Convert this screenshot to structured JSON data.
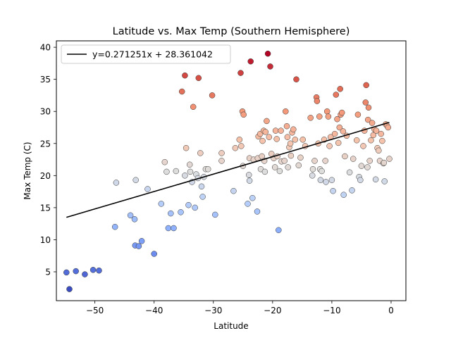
{
  "chart_data": {
    "type": "scatter",
    "title": "Latitude vs. Max Temp (Southern Hemisphere)",
    "xlabel": "Latitude",
    "ylabel": "Max Temp (C)",
    "xlim": [
      -56.5,
      2.5
    ],
    "ylim": [
      0.5,
      41
    ],
    "xticks": [
      -50,
      -40,
      -30,
      -20,
      -10,
      0
    ],
    "yticks": [
      5,
      10,
      15,
      20,
      25,
      30,
      35,
      40
    ],
    "xtick_labels": [
      "−50",
      "−40",
      "−30",
      "−20",
      "−10",
      "0"
    ],
    "yticks_labels": [
      "5",
      "10",
      "15",
      "20",
      "25",
      "30",
      "35",
      "40"
    ],
    "colormap": "coolwarm",
    "color_range": [
      2.3,
      39.0
    ],
    "grid": false,
    "legend_position": "top-left",
    "regression": {
      "label": "y=0.271251x + 28.361042",
      "slope": 0.271251,
      "intercept": 28.361042,
      "x_range": [
        -54.8,
        -0.3
      ],
      "color": "#000000"
    },
    "points": [
      [
        -54.8,
        4.9
      ],
      [
        -54.3,
        2.3
      ],
      [
        -53.2,
        5.1
      ],
      [
        -51.7,
        4.6
      ],
      [
        -50.3,
        5.3
      ],
      [
        -49.3,
        5.2
      ],
      [
        -46.6,
        12.0
      ],
      [
        -46.4,
        18.9
      ],
      [
        -44.0,
        13.8
      ],
      [
        -43.3,
        13.2
      ],
      [
        -43.2,
        9.1
      ],
      [
        -43.1,
        19.3
      ],
      [
        -42.6,
        9.0
      ],
      [
        -42.1,
        9.8
      ],
      [
        -41.1,
        17.9
      ],
      [
        -40.0,
        7.8
      ],
      [
        -38.8,
        15.6
      ],
      [
        -38.2,
        22.1
      ],
      [
        -37.9,
        20.6
      ],
      [
        -37.6,
        11.8
      ],
      [
        -37.2,
        14.1
      ],
      [
        -36.7,
        11.8
      ],
      [
        -36.3,
        20.7
      ],
      [
        -35.5,
        14.3
      ],
      [
        -35.3,
        33.1
      ],
      [
        -34.8,
        35.6
      ],
      [
        -34.8,
        20.0
      ],
      [
        -34.6,
        24.3
      ],
      [
        -34.2,
        15.4
      ],
      [
        -34.0,
        21.7
      ],
      [
        -33.9,
        20.6
      ],
      [
        -33.6,
        19.0
      ],
      [
        -33.4,
        30.7
      ],
      [
        -33.1,
        15.0
      ],
      [
        -32.9,
        20.2
      ],
      [
        -32.6,
        19.6
      ],
      [
        -32.5,
        35.2
      ],
      [
        -32.2,
        23.5
      ],
      [
        -32.0,
        18.3
      ],
      [
        -31.8,
        16.7
      ],
      [
        -31.6,
        19.8
      ],
      [
        -31.3,
        21.0
      ],
      [
        -30.9,
        21.0
      ],
      [
        -30.2,
        32.5
      ],
      [
        -29.7,
        13.9
      ],
      [
        -28.6,
        23.5
      ],
      [
        -28.6,
        22.3
      ],
      [
        -26.6,
        17.6
      ],
      [
        -26.3,
        24.3
      ],
      [
        -25.6,
        25.6
      ],
      [
        -25.4,
        36.0
      ],
      [
        -25.3,
        24.6
      ],
      [
        -25.1,
        30.0
      ],
      [
        -25.0,
        21.5
      ],
      [
        -24.9,
        29.5
      ],
      [
        -24.2,
        15.6
      ],
      [
        -24.0,
        20.1
      ],
      [
        -23.9,
        22.7
      ],
      [
        -23.9,
        19.2
      ],
      [
        -23.7,
        37.8
      ],
      [
        -23.4,
        16.5
      ],
      [
        -23.2,
        22.5
      ],
      [
        -22.6,
        14.4
      ],
      [
        -22.5,
        22.7
      ],
      [
        -22.4,
        26.1
      ],
      [
        -22.1,
        26.5
      ],
      [
        -22.0,
        21.0
      ],
      [
        -21.8,
        23.0
      ],
      [
        -21.7,
        25.4
      ],
      [
        -21.5,
        27.0
      ],
      [
        -21.4,
        22.3
      ],
      [
        -21.3,
        20.6
      ],
      [
        -21.2,
        26.8
      ],
      [
        -21.0,
        28.5
      ],
      [
        -20.8,
        39.0
      ],
      [
        -20.6,
        26.0
      ],
      [
        -20.4,
        37.0
      ],
      [
        -20.2,
        23.4
      ],
      [
        -19.8,
        22.7
      ],
      [
        -19.6,
        21.3
      ],
      [
        -19.5,
        27.0
      ],
      [
        -19.3,
        25.7
      ],
      [
        -19.2,
        23.0
      ],
      [
        -19.0,
        11.5
      ],
      [
        -18.8,
        20.7
      ],
      [
        -18.6,
        27.0
      ],
      [
        -18.5,
        22.2
      ],
      [
        -18.0,
        22.3
      ],
      [
        -17.8,
        30.0
      ],
      [
        -17.6,
        27.7
      ],
      [
        -17.5,
        26.0
      ],
      [
        -17.4,
        21.3
      ],
      [
        -17.2,
        24.4
      ],
      [
        -17.0,
        25.0
      ],
      [
        -16.9,
        23.1
      ],
      [
        -16.7,
        26.7
      ],
      [
        -16.5,
        27.2
      ],
      [
        -16.2,
        25.6
      ],
      [
        -16.0,
        35.0
      ],
      [
        -15.6,
        21.6
      ],
      [
        -15.3,
        22.8
      ],
      [
        -14.9,
        25.6
      ],
      [
        -14.5,
        24.6
      ],
      [
        -13.6,
        29.0
      ],
      [
        -13.3,
        20.0
      ],
      [
        -13.2,
        21.0
      ],
      [
        -12.9,
        22.3
      ],
      [
        -12.6,
        32.2
      ],
      [
        -12.5,
        31.6
      ],
      [
        -12.3,
        25.0
      ],
      [
        -12.1,
        29.2
      ],
      [
        -12.0,
        21.0
      ],
      [
        -11.9,
        19.3
      ],
      [
        -11.7,
        20.7
      ],
      [
        -11.3,
        25.6
      ],
      [
        -11.1,
        22.3
      ],
      [
        -11.0,
        19.0
      ],
      [
        -10.8,
        30.0
      ],
      [
        -10.6,
        29.2
      ],
      [
        -10.4,
        24.6
      ],
      [
        -10.2,
        26.0
      ],
      [
        -10.0,
        19.3
      ],
      [
        -9.8,
        17.6
      ],
      [
        -9.5,
        26.5
      ],
      [
        -9.3,
        32.6
      ],
      [
        -9.1,
        28.8
      ],
      [
        -8.9,
        25.1
      ],
      [
        -8.7,
        27.5
      ],
      [
        -8.6,
        33.5
      ],
      [
        -8.5,
        29.5
      ],
      [
        -8.3,
        29.8
      ],
      [
        -8.1,
        26.9
      ],
      [
        -8.0,
        17.0
      ],
      [
        -7.8,
        23.0
      ],
      [
        -7.5,
        26.2
      ],
      [
        -7.0,
        20.5
      ],
      [
        -6.6,
        17.7
      ],
      [
        -6.4,
        22.6
      ],
      [
        -5.8,
        25.5
      ],
      [
        -5.6,
        29.5
      ],
      [
        -5.4,
        19.8
      ],
      [
        -5.2,
        19.3
      ],
      [
        -5.0,
        21.5
      ],
      [
        -4.7,
        24.6
      ],
      [
        -4.5,
        27.0
      ],
      [
        -4.3,
        31.4
      ],
      [
        -4.2,
        34.1
      ],
      [
        -4.0,
        21.3
      ],
      [
        -3.9,
        28.7
      ],
      [
        -3.8,
        30.6
      ],
      [
        -3.6,
        22.3
      ],
      [
        -3.4,
        25.5
      ],
      [
        -3.2,
        28.2
      ],
      [
        -3.0,
        26.3
      ],
      [
        -2.8,
        27.2
      ],
      [
        -2.6,
        19.4
      ],
      [
        -2.5,
        27.0
      ],
      [
        -2.3,
        24.3
      ],
      [
        -2.1,
        23.9
      ],
      [
        -1.9,
        22.3
      ],
      [
        -1.7,
        26.5
      ],
      [
        -1.5,
        25.4
      ],
      [
        -1.3,
        21.9
      ],
      [
        -1.1,
        19.1
      ],
      [
        -0.9,
        28.0
      ],
      [
        -0.7,
        27.8
      ],
      [
        -0.5,
        27.5
      ],
      [
        -0.3,
        22.6
      ],
      [
        -1.2,
        22.0
      ]
    ]
  }
}
